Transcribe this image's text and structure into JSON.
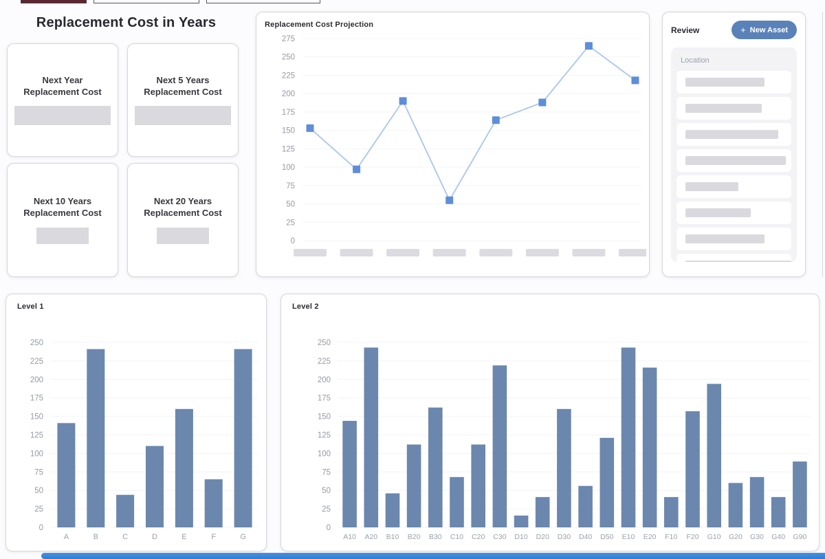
{
  "page_title": "Replacement Cost in Years",
  "summary_cards": [
    {
      "label": "Next Year Replacement Cost",
      "value": "redacted-placeholder"
    },
    {
      "label": "Next 5 Years Replacement Cost",
      "value": "redacted-placeholder"
    },
    {
      "label": "Next 10 Years Replacement Cost",
      "value": "redacted-placeholder"
    },
    {
      "label": "Next 20 Years Replacement Cost",
      "value": "redacted-placeholder"
    }
  ],
  "review": {
    "title": "Review",
    "plus_icon": "+",
    "new_asset_label": "New Asset",
    "column_header": "Location",
    "placeholder_row_widths": [
      115,
      111,
      135,
      146,
      77,
      95,
      115,
      160
    ]
  },
  "colors": {
    "bar": "#6b87ae",
    "line": "#a9c5ee",
    "marker": "#5e8ed9",
    "accent_button": "#5b82b8",
    "progress_blue": "#2d7ed3",
    "axis_label": "#9599a3",
    "grid": "#f4f3f7",
    "placeholder": "#dcdbe1"
  },
  "chart_data": [
    {
      "type": "line",
      "title": "Replacement Cost Projection",
      "x_labels": [
        "redacted",
        "redacted",
        "redacted",
        "redacted",
        "redacted",
        "redacted",
        "redacted",
        "redacted"
      ],
      "values": [
        153,
        97,
        190,
        55,
        164,
        188,
        265,
        218
      ],
      "ylim": [
        0,
        275
      ],
      "ytick_step": 25,
      "grid": "faint-horizontal",
      "legend": "none",
      "marker": "square"
    },
    {
      "type": "bar",
      "title": "Level 1",
      "categories": [
        "A",
        "B",
        "C",
        "D",
        "E",
        "F",
        "G"
      ],
      "values": [
        141,
        241,
        44,
        110,
        160,
        65,
        241
      ],
      "ylim": [
        0,
        250
      ],
      "ytick_step": 25,
      "grid": "faint-horizontal",
      "legend": "none"
    },
    {
      "type": "bar",
      "title": "Level 2",
      "categories": [
        "A10",
        "A20",
        "B10",
        "B20",
        "B30",
        "C10",
        "C20",
        "C30",
        "D10",
        "D20",
        "D30",
        "D40",
        "D50",
        "E10",
        "E20",
        "F10",
        "F20",
        "G10",
        "G20",
        "G30",
        "G40",
        "G90"
      ],
      "values": [
        144,
        243,
        46,
        112,
        162,
        68,
        112,
        219,
        16,
        41,
        160,
        56,
        121,
        243,
        216,
        41,
        157,
        194,
        60,
        68,
        41,
        89
      ],
      "ylim": [
        0,
        250
      ],
      "ytick_step": 25,
      "grid": "faint-horizontal",
      "legend": "none"
    }
  ]
}
